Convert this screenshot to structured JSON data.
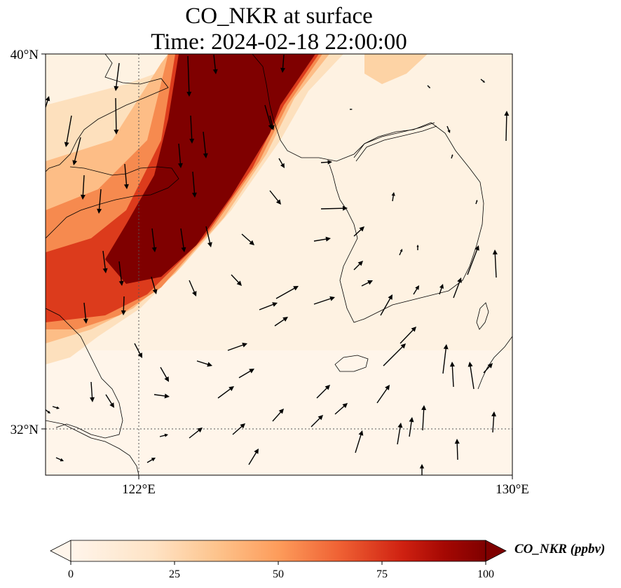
{
  "title_line1": "CO_NKR at surface",
  "title_line2": "Time: 2024-02-18 22:00:00",
  "lat_ticks": [
    {
      "label": "40°N",
      "lat": 40
    },
    {
      "label": "32°N",
      "lat": 32
    }
  ],
  "lon_ticks": [
    {
      "label": "122°E",
      "lon": 122
    },
    {
      "label": "130°E",
      "lon": 130
    }
  ],
  "colorbar": {
    "label": "CO_NKR (ppbv)",
    "ticks": [
      "0",
      "25",
      "50",
      "75",
      "100"
    ],
    "tick_values": [
      0,
      25,
      50,
      75,
      100
    ],
    "range": [
      0,
      100
    ],
    "colormap": [
      "#fff5eb",
      "#fdd8a8",
      "#fdae6b",
      "#f16a32",
      "#d42a14",
      "#a40b03",
      "#7f0000"
    ],
    "extend": "both"
  },
  "map": {
    "lon_range": [
      118,
      130
    ],
    "lat_range": [
      31,
      40
    ],
    "high_color": "#7f0000",
    "background_color": "#fff3e4"
  }
}
